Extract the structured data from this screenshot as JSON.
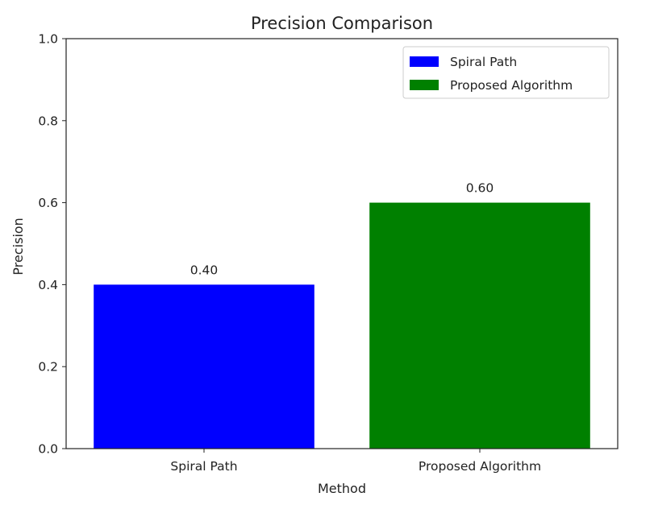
{
  "chart_data": {
    "type": "bar",
    "title": "Precision Comparison",
    "xlabel": "Method",
    "ylabel": "Precision",
    "categories": [
      "Spiral Path",
      "Proposed Algorithm"
    ],
    "values": [
      0.4,
      0.6
    ],
    "value_labels": [
      "0.40",
      "0.60"
    ],
    "colors": [
      "#0000ff",
      "#008000"
    ],
    "ylim": [
      0,
      1.0
    ],
    "yticks": [
      0.0,
      0.2,
      0.4,
      0.6,
      0.8,
      1.0
    ],
    "ytick_labels": [
      "0.0",
      "0.2",
      "0.4",
      "0.6",
      "0.8",
      "1.0"
    ],
    "grid": false,
    "legend": {
      "position": "top-right",
      "entries": [
        "Spiral Path",
        "Proposed Algorithm"
      ]
    }
  }
}
